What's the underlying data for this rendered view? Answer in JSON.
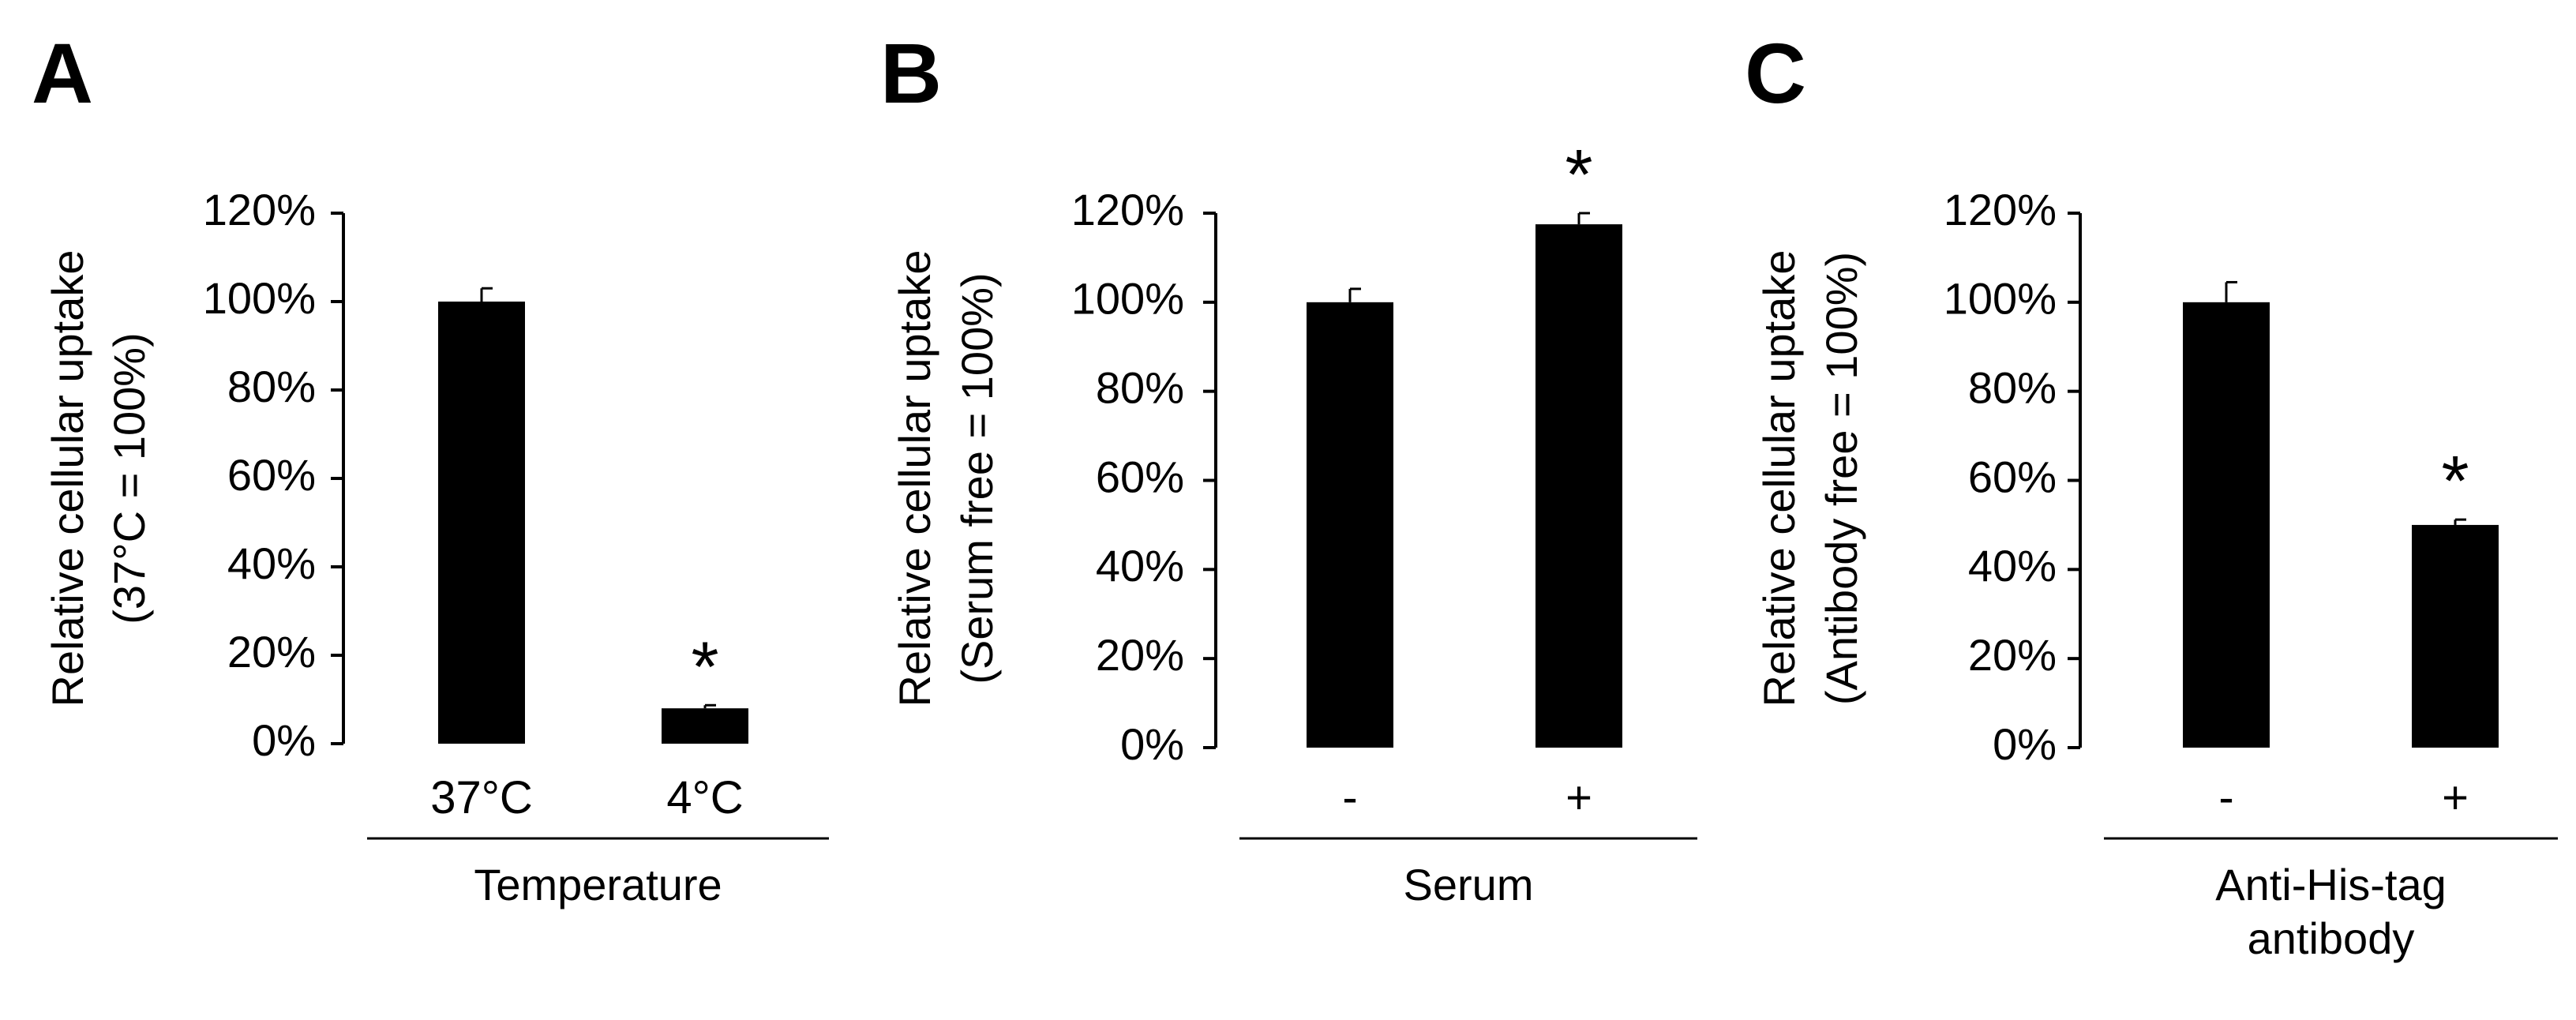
{
  "chart_data": [
    {
      "panel_label": "A",
      "type": "bar",
      "categories": [
        "37°C",
        "4°C"
      ],
      "values": [
        100,
        8
      ],
      "error": [
        3,
        0.7
      ],
      "significance": [
        "",
        "*"
      ],
      "ylabel": [
        "Relative cellular uptake",
        "(37°C = 100%)"
      ],
      "ytick_labels": [
        "0%",
        "20%",
        "40%",
        "60%",
        "80%",
        "100%",
        "120%"
      ],
      "ylim": [
        0,
        120
      ],
      "group_label": [
        "Temperature"
      ],
      "bar_color": "#000000"
    },
    {
      "panel_label": "B",
      "type": "bar",
      "categories": [
        "-",
        "+"
      ],
      "values": [
        100,
        117.5
      ],
      "error": [
        3,
        2.5
      ],
      "significance": [
        "",
        "*"
      ],
      "ylabel": [
        "Relative cellular uptake",
        "(Serum free = 100%)"
      ],
      "ytick_labels": [
        "0%",
        "20%",
        "40%",
        "60%",
        "80%",
        "100%",
        "120%"
      ],
      "ylim": [
        0,
        120
      ],
      "group_label": [
        "Serum"
      ],
      "bar_color": "#000000"
    },
    {
      "panel_label": "C",
      "type": "bar",
      "categories": [
        "-",
        "+"
      ],
      "values": [
        100,
        50
      ],
      "error": [
        4.5,
        1.2
      ],
      "significance": [
        "",
        "*"
      ],
      "ylabel": [
        "Relative cellular uptake",
        "(Antibody free = 100%)"
      ],
      "ytick_labels": [
        "0%",
        "20%",
        "40%",
        "60%",
        "80%",
        "100%",
        "120%"
      ],
      "ylim": [
        0,
        120
      ],
      "group_label": [
        "Anti-His-tag",
        "antibody"
      ],
      "bar_color": "#000000"
    }
  ]
}
